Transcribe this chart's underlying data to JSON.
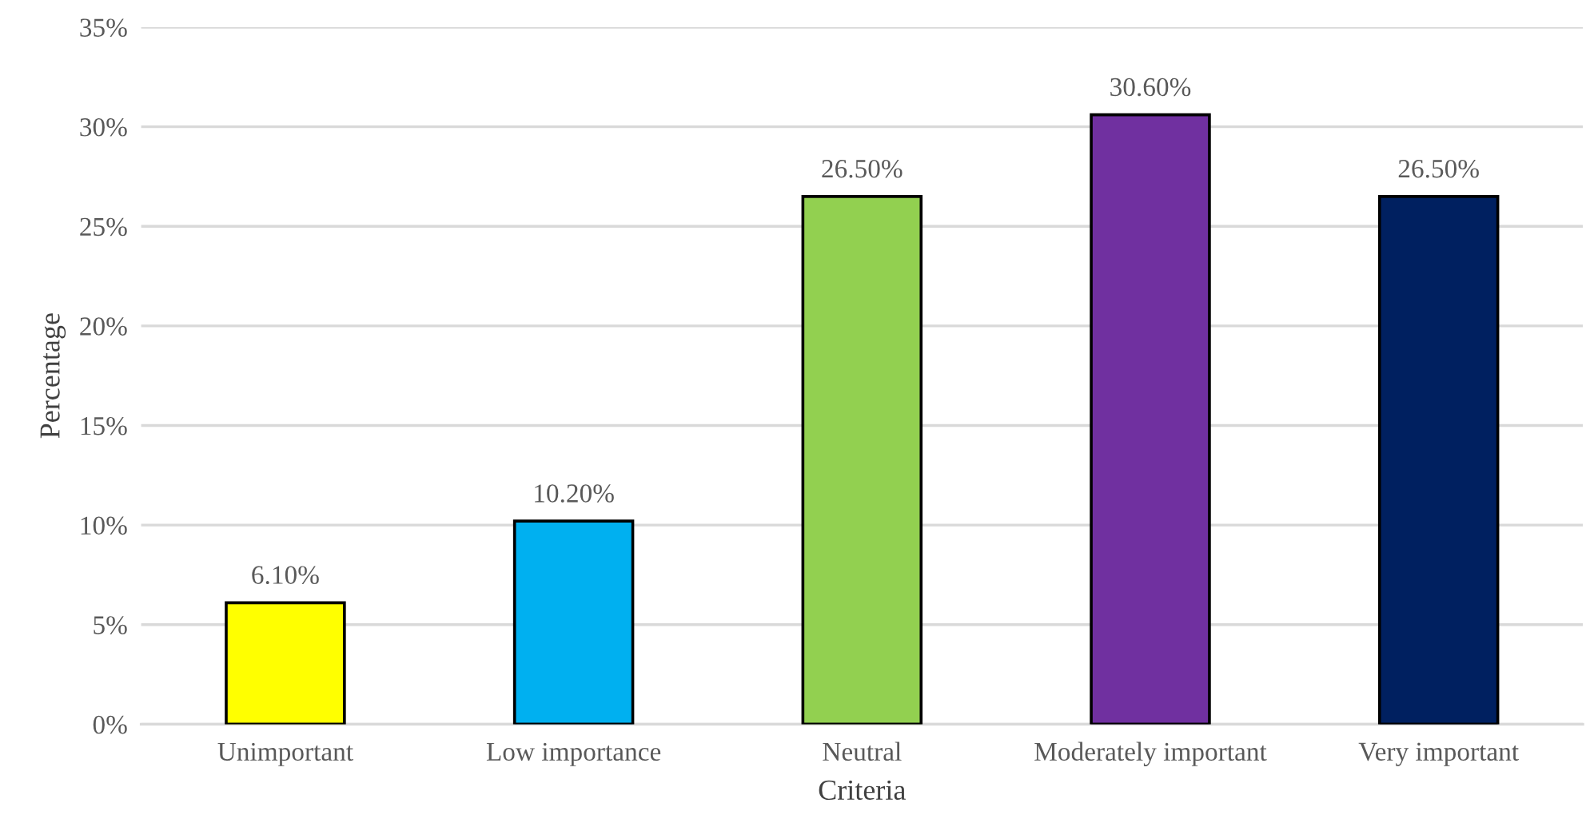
{
  "chart_data": {
    "type": "bar",
    "xlabel": "Criteria",
    "ylabel": "Percentage",
    "categories": [
      "Unimportant",
      "Low importance",
      "Neutral",
      "Moderately important",
      "Very important"
    ],
    "values": [
      6.1,
      10.2,
      26.5,
      30.6,
      26.5
    ],
    "colors": [
      "#ffff00",
      "#00b0f0",
      "#92d050",
      "#7030a0",
      "#002060"
    ],
    "value_labels": [
      "6.10%",
      "10.20%",
      "26.50%",
      "30.60%",
      "26.50%"
    ],
    "ylim": [
      0,
      35
    ],
    "yticks": [
      {
        "value": 0,
        "label": "0%"
      },
      {
        "value": 5,
        "label": "5%"
      },
      {
        "value": 10,
        "label": "10%"
      },
      {
        "value": 15,
        "label": "15%"
      },
      {
        "value": 20,
        "label": "20%"
      },
      {
        "value": 25,
        "label": "25%"
      },
      {
        "value": 30,
        "label": "30%"
      },
      {
        "value": 35,
        "label": "35%"
      }
    ],
    "grid": "y",
    "legend": false
  }
}
